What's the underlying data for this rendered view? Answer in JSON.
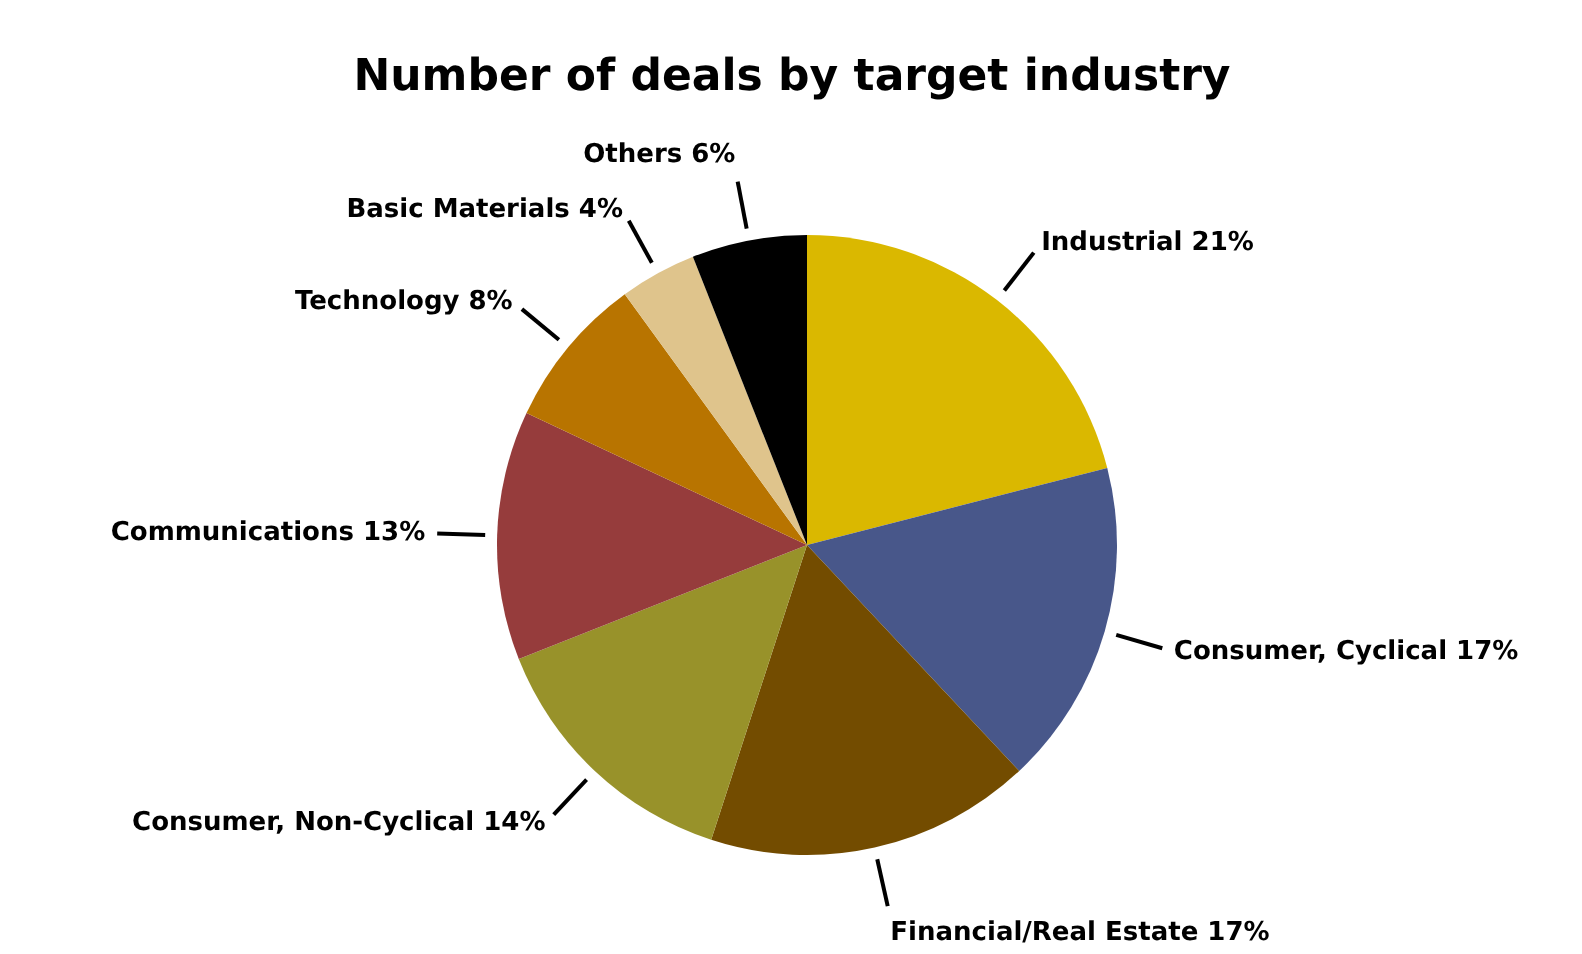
{
  "chart_data": {
    "type": "pie",
    "title": "Number of deals by target industry",
    "categories": [
      "Industrial",
      "Consumer, Cyclical",
      "Financial/Real Estate",
      "Consumer, Non-Cyclical",
      "Communications",
      "Technology",
      "Basic Materials",
      "Others"
    ],
    "values": [
      21,
      17,
      17,
      14,
      13,
      8,
      4,
      6
    ],
    "value_labels": [
      "21%",
      "17%",
      "17%",
      "14%",
      "13%",
      "8%",
      "4%",
      "6%"
    ],
    "colors": [
      "#dab800",
      "#48578a",
      "#734c00",
      "#98922a",
      "#963c3c",
      "#b87400",
      "#dfc48c",
      "#000000"
    ]
  }
}
